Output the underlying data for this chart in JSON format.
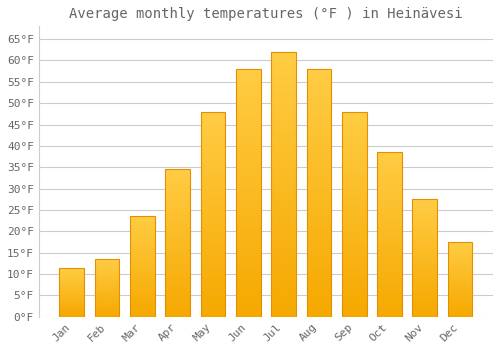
{
  "title": "Average monthly temperatures (°F ) in Heinävesi",
  "months": [
    "Jan",
    "Feb",
    "Mar",
    "Apr",
    "May",
    "Jun",
    "Jul",
    "Aug",
    "Sep",
    "Oct",
    "Nov",
    "Dec"
  ],
  "values": [
    11.5,
    13.5,
    23.5,
    34.5,
    48.0,
    58.0,
    62.0,
    58.0,
    48.0,
    38.5,
    27.5,
    17.5
  ],
  "bar_color_top": "#FFC533",
  "bar_color_bottom": "#F5A800",
  "bar_edge_color": "#E09000",
  "background_color": "#ffffff",
  "grid_color": "#cccccc",
  "text_color": "#666666",
  "ylim": [
    0,
    68
  ],
  "yticks": [
    0,
    5,
    10,
    15,
    20,
    25,
    30,
    35,
    40,
    45,
    50,
    55,
    60,
    65
  ],
  "ytick_labels": [
    "0°F",
    "5°F",
    "10°F",
    "15°F",
    "20°F",
    "25°F",
    "30°F",
    "35°F",
    "40°F",
    "45°F",
    "50°F",
    "55°F",
    "60°F",
    "65°F"
  ],
  "title_fontsize": 10,
  "tick_fontsize": 8,
  "bar_width": 0.7,
  "figsize": [
    5.0,
    3.5
  ],
  "dpi": 100
}
